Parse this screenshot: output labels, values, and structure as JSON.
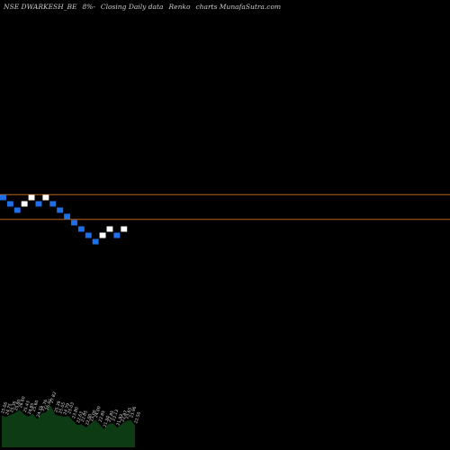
{
  "header": {
    "symbol": "NSE DWARKESH_BE",
    "box_label": "8%-",
    "description": "Closing Daily data",
    "chart_name": "Renko",
    "site": "charts MunafaSutra.com"
  },
  "colors": {
    "up_brick": "#ffffff",
    "down_brick": "#1e6fe8",
    "reference_line": "#b8651a",
    "volume_fill": "#0d3b14",
    "volume_label": "#d8d8d8",
    "background": "#000000"
  },
  "chart_data": {
    "type": "renko",
    "title": "NSE DWARKESH_BE 8%- Closing Daily data Renko charts MunafaSutra.com",
    "bricks": [
      {
        "direction": "down",
        "level": 0
      },
      {
        "direction": "down",
        "level": -1
      },
      {
        "direction": "down",
        "level": -2
      },
      {
        "direction": "up",
        "level": -1
      },
      {
        "direction": "up",
        "level": 0
      },
      {
        "direction": "down",
        "level": -1
      },
      {
        "direction": "up",
        "level": 0
      },
      {
        "direction": "down",
        "level": -1
      },
      {
        "direction": "down",
        "level": -2
      },
      {
        "direction": "down",
        "level": -3
      },
      {
        "direction": "down",
        "level": -4
      },
      {
        "direction": "down",
        "level": -5
      },
      {
        "direction": "down",
        "level": -6
      },
      {
        "direction": "down",
        "level": -7
      },
      {
        "direction": "up",
        "level": -6
      },
      {
        "direction": "up",
        "level": -5
      },
      {
        "direction": "down",
        "level": -6
      },
      {
        "direction": "up",
        "level": -5
      }
    ],
    "reference_lines": [
      0.55,
      -3.4
    ],
    "volume_labels": [
      "25.06",
      "24.75",
      "25.36",
      "25.80",
      "26.60",
      "25.43",
      "24.85",
      "25.60",
      "24.15",
      "25.76",
      "26.01",
      "27.82",
      "25.39",
      "25.05",
      "24.79",
      "25.03",
      "23.80",
      "22.63",
      "22.85",
      "22.00",
      "23.00",
      "24.00",
      "22.85",
      "21.50",
      "22.85",
      "23.13",
      "21.93",
      "22.87",
      "23.65",
      "23.96",
      "22.50"
    ]
  }
}
